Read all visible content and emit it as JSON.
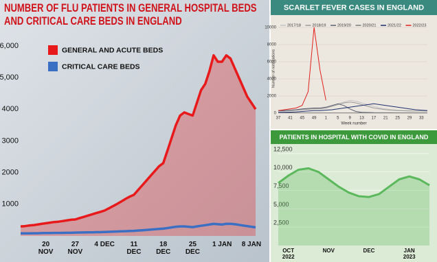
{
  "chart_data": [
    {
      "type": "area-line",
      "title": "NUMBER OF FLU PATIENTS IN GENERAL HOSPITAL BEDS AND CRITICAL CARE BEDS IN ENGLAND",
      "categories": [
        null,
        null,
        null,
        null,
        null,
        null,
        "20 NOV",
        null,
        null,
        null,
        null,
        null,
        null,
        "27 NOV",
        null,
        null,
        null,
        null,
        null,
        null,
        "4 DEC",
        null,
        null,
        null,
        null,
        null,
        null,
        "11 DEC",
        null,
        null,
        null,
        null,
        null,
        null,
        "18 DEC",
        null,
        null,
        null,
        null,
        null,
        null,
        "25 DEC",
        null,
        null,
        null,
        null,
        null,
        null,
        "1 JAN",
        null,
        null,
        null,
        null,
        null,
        null,
        "8 JAN",
        null
      ],
      "series": [
        {
          "name": "GENERAL AND ACUTE BEDS",
          "color": "#e8191b",
          "values": [
            300,
            310,
            330,
            340,
            360,
            380,
            400,
            420,
            440,
            450,
            470,
            490,
            510,
            520,
            560,
            600,
            640,
            680,
            720,
            760,
            800,
            870,
            940,
            1010,
            1090,
            1170,
            1240,
            1300,
            1450,
            1600,
            1750,
            1900,
            2050,
            2200,
            2300,
            2700,
            3100,
            3500,
            3800,
            3900,
            3850,
            3800,
            4200,
            4600,
            4800,
            5200,
            5700,
            5500,
            5500,
            5700,
            5600,
            5300,
            5000,
            4700,
            4400,
            4200,
            4000
          ]
        },
        {
          "name": "CRITICAL CARE BEDS",
          "color": "#3a6fc4",
          "values": [
            80,
            80,
            82,
            85,
            85,
            88,
            90,
            92,
            95,
            95,
            98,
            100,
            100,
            105,
            108,
            110,
            112,
            115,
            118,
            120,
            125,
            130,
            135,
            140,
            145,
            150,
            155,
            160,
            170,
            180,
            190,
            200,
            210,
            220,
            230,
            250,
            270,
            290,
            300,
            300,
            290,
            280,
            300,
            320,
            340,
            360,
            380,
            370,
            360,
            380,
            380,
            370,
            350,
            330,
            310,
            290,
            270
          ]
        }
      ],
      "ylim": [
        0,
        6300
      ],
      "yticks": [
        1000,
        2000,
        3000,
        4000,
        {
          "value": 5000,
          "label": "5,000"
        },
        {
          "value": 6000,
          "label": "6,000"
        }
      ],
      "grid": false
    },
    {
      "type": "line",
      "title": "SCARLET FEVER CASES IN ENGLAND",
      "x_label": "Week number",
      "y_label": "Number of notifications",
      "categories": [
        37,
        null,
        41,
        null,
        45,
        null,
        49,
        null,
        1,
        null,
        5,
        null,
        9,
        null,
        13,
        null,
        17,
        null,
        21,
        null,
        25,
        null,
        29,
        null,
        33,
        null
      ],
      "series": [
        {
          "name": "2017/18",
          "color": "#c4c4c4",
          "values": [
            300,
            300,
            350,
            400,
            450,
            500,
            550,
            600,
            700,
            900,
            1100,
            1300,
            1500,
            1400,
            1200,
            1000,
            800,
            600,
            500,
            400,
            350,
            300,
            300,
            250,
            250,
            250
          ]
        },
        {
          "name": "2018/19",
          "color": "#9a9a9a",
          "values": [
            250,
            250,
            300,
            350,
            400,
            450,
            500,
            500,
            600,
            800,
            1000,
            1200,
            1300,
            1200,
            1000,
            800,
            600,
            500,
            400,
            350,
            300,
            280,
            250,
            250,
            250,
            250
          ]
        },
        {
          "name": "2019/20",
          "color": "#5a5f70",
          "values": [
            300,
            300,
            350,
            400,
            500,
            550,
            600,
            600,
            700,
            900,
            1100,
            900,
            500,
            200,
            100,
            80,
            60,
            50,
            50,
            50,
            40,
            40,
            40,
            40,
            40,
            40
          ]
        },
        {
          "name": "2020/21",
          "color": "#7d7d7d",
          "values": [
            50,
            50,
            40,
            40,
            40,
            30,
            30,
            30,
            30,
            30,
            30,
            30,
            30,
            30,
            30,
            30,
            30,
            30,
            30,
            30,
            30,
            30,
            30,
            30,
            30,
            30
          ]
        },
        {
          "name": "2021/22",
          "color": "#1f2f6e",
          "values": [
            100,
            100,
            120,
            150,
            200,
            250,
            300,
            300,
            350,
            400,
            500,
            600,
            700,
            800,
            900,
            1000,
            1100,
            1000,
            900,
            800,
            700,
            600,
            500,
            400,
            350,
            300
          ]
        },
        {
          "name": "2022/23",
          "color": "#e0201b",
          "values": [
            300,
            400,
            500,
            600,
            900,
            2500,
            10000,
            5000,
            1500,
            null,
            null,
            null,
            null,
            null,
            null,
            null,
            null,
            null,
            null,
            null,
            null,
            null,
            null,
            null,
            null,
            null
          ]
        }
      ],
      "ylim": [
        0,
        11000
      ],
      "yticks": [
        0,
        2000,
        4000,
        6000,
        8000,
        10000
      ],
      "grid": true
    },
    {
      "type": "area-line",
      "title": "PATIENTS IN HOSPITAL WITH COVID IN ENGLAND",
      "categories": [
        null,
        "OCT 2022",
        null,
        null,
        null,
        "NOV",
        null,
        null,
        null,
        "DEC",
        null,
        null,
        null,
        "JAN 2023",
        null,
        null
      ],
      "series": [
        {
          "name": null,
          "color": "#5cb85c",
          "values": [
            8500,
            9500,
            10300,
            10500,
            10000,
            9000,
            8000,
            7200,
            6700,
            6600,
            7000,
            8000,
            9000,
            9400,
            9000,
            8200
          ]
        }
      ],
      "ylim": [
        0,
        13800
      ],
      "yticks": [
        {
          "value": 2500,
          "label": "2,500"
        },
        {
          "value": 5000,
          "label": "5,000"
        },
        {
          "value": 7500,
          "label": "7,500"
        },
        {
          "value": 10000,
          "label": "10,000"
        },
        {
          "value": 12500,
          "label": "12,500"
        }
      ],
      "grid": true
    }
  ]
}
